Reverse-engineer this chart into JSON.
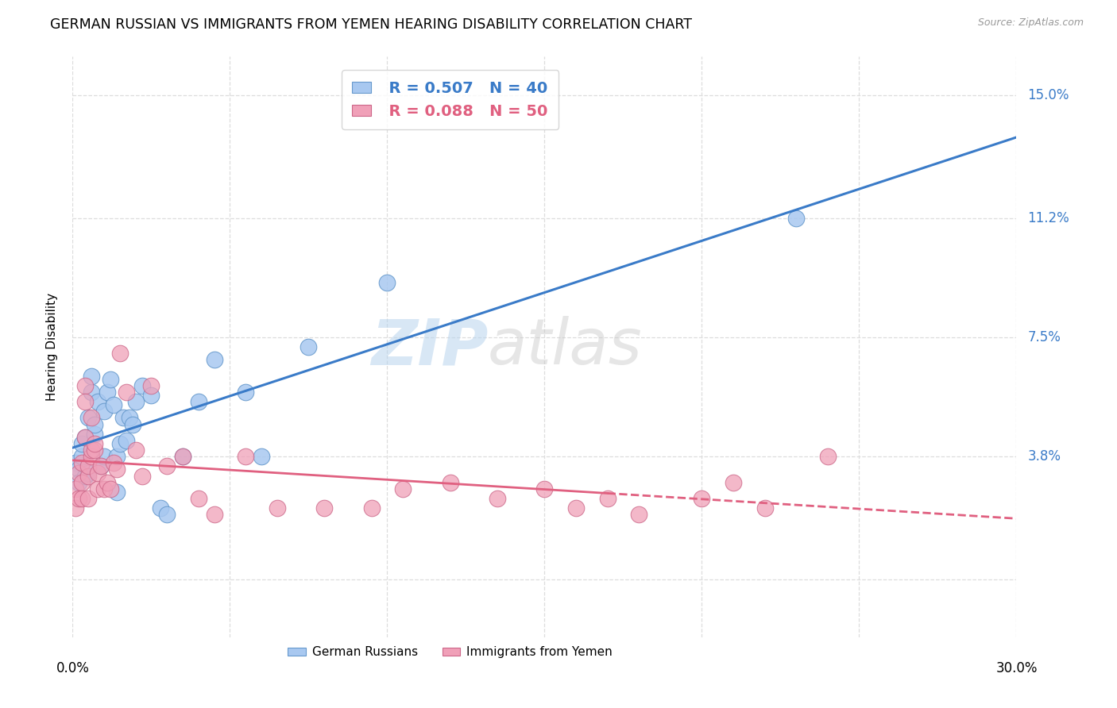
{
  "title": "GERMAN RUSSIAN VS IMMIGRANTS FROM YEMEN HEARING DISABILITY CORRELATION CHART",
  "source": "Source: ZipAtlas.com",
  "ylabel": "Hearing Disability",
  "yticks": [
    0.0,
    0.038,
    0.075,
    0.112,
    0.15
  ],
  "ytick_labels": [
    "",
    "3.8%",
    "7.5%",
    "11.2%",
    "15.0%"
  ],
  "xmin": 0.0,
  "xmax": 0.3,
  "ymin": -0.018,
  "ymax": 0.162,
  "watermark_zip": "ZIP",
  "watermark_atlas": "atlas",
  "series1_label": "German Russians",
  "series1_color": "#a8c8f0",
  "series1_edge_color": "#6699cc",
  "series1_R": "0.507",
  "series1_N": "40",
  "series2_label": "Immigrants from Yemen",
  "series2_color": "#f0a0b8",
  "series2_edge_color": "#cc6688",
  "series2_R": "0.088",
  "series2_N": "50",
  "series1_x": [
    0.001,
    0.002,
    0.002,
    0.003,
    0.003,
    0.004,
    0.004,
    0.005,
    0.005,
    0.006,
    0.006,
    0.007,
    0.007,
    0.008,
    0.009,
    0.01,
    0.01,
    0.011,
    0.012,
    0.013,
    0.014,
    0.014,
    0.015,
    0.016,
    0.017,
    0.018,
    0.019,
    0.02,
    0.022,
    0.025,
    0.028,
    0.03,
    0.035,
    0.04,
    0.045,
    0.055,
    0.06,
    0.075,
    0.1,
    0.23
  ],
  "series1_y": [
    0.036,
    0.034,
    0.03,
    0.038,
    0.042,
    0.032,
    0.044,
    0.033,
    0.05,
    0.058,
    0.063,
    0.045,
    0.048,
    0.055,
    0.035,
    0.038,
    0.052,
    0.058,
    0.062,
    0.054,
    0.027,
    0.038,
    0.042,
    0.05,
    0.043,
    0.05,
    0.048,
    0.055,
    0.06,
    0.057,
    0.022,
    0.02,
    0.038,
    0.055,
    0.068,
    0.058,
    0.038,
    0.072,
    0.092,
    0.112
  ],
  "series2_x": [
    0.001,
    0.001,
    0.002,
    0.002,
    0.003,
    0.003,
    0.003,
    0.004,
    0.004,
    0.004,
    0.005,
    0.005,
    0.005,
    0.006,
    0.006,
    0.006,
    0.007,
    0.007,
    0.008,
    0.008,
    0.009,
    0.01,
    0.011,
    0.012,
    0.013,
    0.014,
    0.015,
    0.017,
    0.02,
    0.022,
    0.025,
    0.03,
    0.035,
    0.04,
    0.045,
    0.055,
    0.065,
    0.08,
    0.095,
    0.105,
    0.12,
    0.135,
    0.15,
    0.16,
    0.17,
    0.18,
    0.2,
    0.21,
    0.22,
    0.24
  ],
  "series2_y": [
    0.028,
    0.022,
    0.033,
    0.025,
    0.036,
    0.03,
    0.025,
    0.06,
    0.055,
    0.044,
    0.032,
    0.035,
    0.025,
    0.038,
    0.04,
    0.05,
    0.04,
    0.042,
    0.028,
    0.033,
    0.035,
    0.028,
    0.03,
    0.028,
    0.036,
    0.034,
    0.07,
    0.058,
    0.04,
    0.032,
    0.06,
    0.035,
    0.038,
    0.025,
    0.02,
    0.038,
    0.022,
    0.022,
    0.022,
    0.028,
    0.03,
    0.025,
    0.028,
    0.022,
    0.025,
    0.02,
    0.025,
    0.03,
    0.022,
    0.038
  ],
  "line_color_blue": "#3a7bc8",
  "line_color_pink": "#e06080",
  "grid_color": "#dddddd",
  "background_color": "#ffffff",
  "title_fontsize": 12.5,
  "axis_label_fontsize": 11,
  "tick_fontsize": 12,
  "legend_fontsize": 14
}
